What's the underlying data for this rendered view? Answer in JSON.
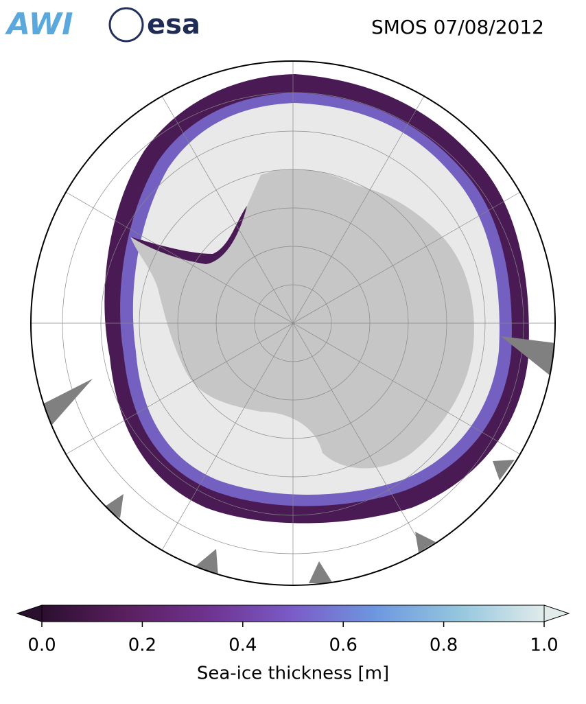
{
  "header": {
    "title": "SMOS 07/08/2012",
    "logos": [
      "AWI",
      "esa"
    ]
  },
  "colorbar": {
    "label": "Sea-ice thickness [m]",
    "lim": [
      0,
      1
    ],
    "ticks": [
      {
        "value": 0,
        "label": "0.0"
      },
      0.2,
      0.4,
      0.6,
      0.8,
      {
        "value": 1,
        "label": "1.0"
      }
    ],
    "colors": [
      "#2b0f2f",
      "#5a1f5e",
      "#6f3391",
      "#7a5cc8",
      "#6e98e0",
      "#95c7de",
      "#e1ebea"
    ]
  }
}
